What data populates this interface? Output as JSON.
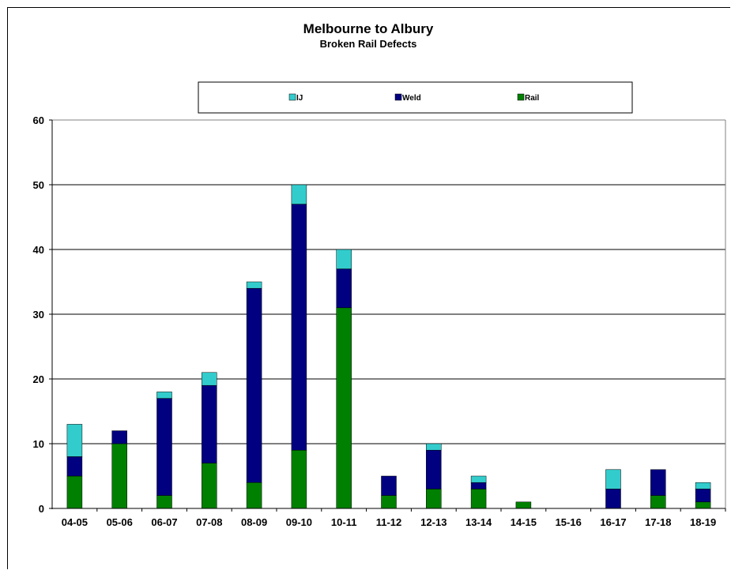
{
  "chart_data": {
    "type": "bar",
    "stacked": true,
    "title": "Melbourne to Albury",
    "subtitle": "Broken Rail Defects",
    "xlabel": "",
    "ylabel": "",
    "ylim": [
      0,
      60
    ],
    "yticks": [
      0,
      10,
      20,
      30,
      40,
      50,
      60
    ],
    "grid": true,
    "legend_position": "top",
    "categories": [
      "04-05",
      "05-06",
      "06-07",
      "07-08",
      "08-09",
      "09-10",
      "10-11",
      "11-12",
      "12-13",
      "13-14",
      "14-15",
      "15-16",
      "16-17",
      "17-18",
      "18-19"
    ],
    "series": [
      {
        "name": "Rail",
        "color": "#008000",
        "values": [
          5,
          10,
          2,
          7,
          4,
          9,
          31,
          2,
          3,
          3,
          1,
          0,
          0,
          2,
          1
        ]
      },
      {
        "name": "Weld",
        "color": "#000080",
        "values": [
          3,
          2,
          15,
          12,
          30,
          38,
          6,
          3,
          6,
          1,
          0,
          0,
          3,
          4,
          2
        ]
      },
      {
        "name": "IJ",
        "color": "#33CCCC",
        "values": [
          5,
          0,
          1,
          2,
          1,
          3,
          3,
          0,
          1,
          1,
          0,
          0,
          3,
          0,
          1
        ]
      }
    ],
    "legend_order": [
      "IJ",
      "Weld",
      "Rail"
    ]
  }
}
